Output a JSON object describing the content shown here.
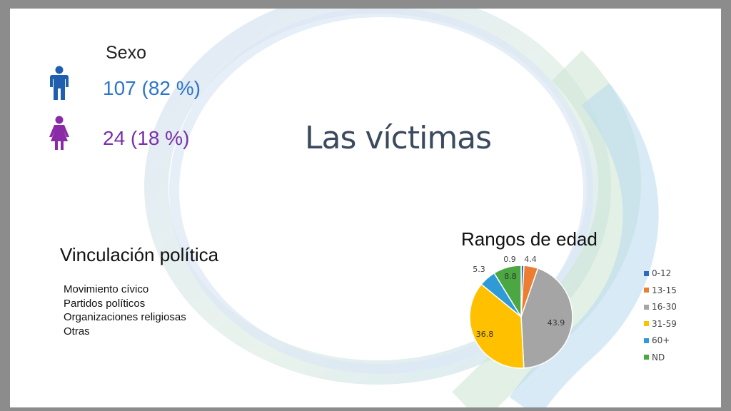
{
  "slide": {
    "title": "Las víctimas",
    "sexo": {
      "title": "Sexo",
      "male": {
        "icon": "male-person-icon",
        "text": "107 (82 %)",
        "color": "#2e75c9"
      },
      "female": {
        "icon": "female-person-icon",
        "text": "24 (18 %)",
        "color": "#7b2fa8"
      }
    },
    "vinculacion": {
      "title": "Vinculación política",
      "items": [
        "Movimiento cívico",
        "Partidos políticos",
        "Organizaciones religiosas",
        "Otras"
      ]
    }
  },
  "chart_data": {
    "type": "pie",
    "title": "Rangos de edad",
    "categories": [
      "0-12",
      "13-15",
      "16-30",
      "31-59",
      "60+",
      "ND"
    ],
    "values": [
      0.9,
      4.4,
      43.9,
      36.8,
      5.3,
      8.8
    ],
    "labels": [
      "0.9",
      "4.4",
      "43.9",
      "36.8",
      "5.3",
      "8.8"
    ],
    "colors": [
      "#2e6bc0",
      "#ed7d31",
      "#a5a5a5",
      "#ffc000",
      "#2e9ad6",
      "#4aa742"
    ],
    "legend": "right"
  }
}
